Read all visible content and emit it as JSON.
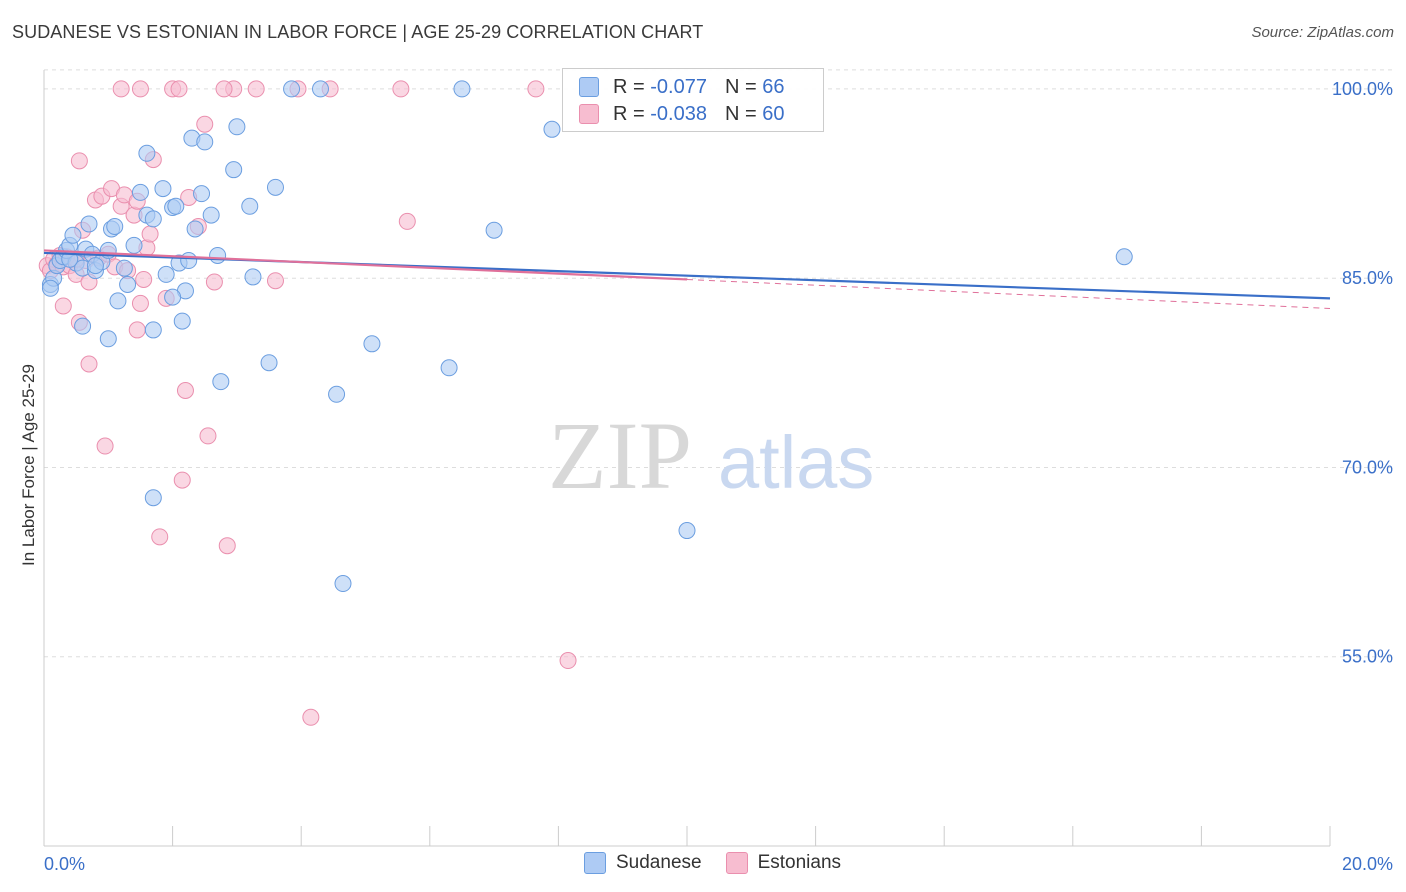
{
  "header": {
    "title": "SUDANESE VS ESTONIAN IN LABOR FORCE | AGE 25-29 CORRELATION CHART",
    "source": "Source: ZipAtlas.com"
  },
  "legend": {
    "r_label": "R =",
    "n_label": "N =",
    "series": [
      {
        "name": "Sudanese",
        "r": "-0.077",
        "n": "66"
      },
      {
        "name": "Estonians",
        "r": "-0.038",
        "n": "60"
      }
    ]
  },
  "watermark": {
    "zip": "ZIP",
    "atlas": "atlas"
  },
  "colors": {
    "sudanese_fill": "#aecbf4",
    "sudanese_stroke": "#6b9ee0",
    "sudanese_line": "#3a6fc8",
    "estonian_fill": "#f7bdd0",
    "estonian_stroke": "#ea8fae",
    "estonian_line": "#e0709a",
    "axis_label": "#3a6fc8",
    "grid": "#dddddd"
  },
  "chart_data": {
    "type": "scatter",
    "title": "SUDANESE VS ESTONIAN IN LABOR FORCE | AGE 25-29 CORRELATION CHART",
    "xlabel": "",
    "ylabel": "In Labor Force | Age 25-29",
    "xlim": [
      0,
      20
    ],
    "ylim": [
      40,
      101.5
    ],
    "x_tick_labels": [
      "0.0%",
      "20.0%"
    ],
    "y_ticks": [
      55,
      70,
      85,
      100
    ],
    "y_tick_labels": [
      "55.0%",
      "70.0%",
      "85.0%",
      "100.0%"
    ],
    "series": [
      {
        "name": "Sudanese",
        "trend": {
          "x": [
            0,
            20
          ],
          "y": [
            87.0,
            83.4
          ]
        },
        "points": [
          [
            0.1,
            84.5
          ],
          [
            0.15,
            85.0
          ],
          [
            0.2,
            86.0
          ],
          [
            0.25,
            86.4
          ],
          [
            0.3,
            86.7
          ],
          [
            0.35,
            87.2
          ],
          [
            0.4,
            87.6
          ],
          [
            0.45,
            88.4
          ],
          [
            0.5,
            86.2
          ],
          [
            0.6,
            85.8
          ],
          [
            0.65,
            87.3
          ],
          [
            0.7,
            89.3
          ],
          [
            0.75,
            86.9
          ],
          [
            0.8,
            85.6
          ],
          [
            0.9,
            86.3
          ],
          [
            1.0,
            87.2
          ],
          [
            1.05,
            88.9
          ],
          [
            1.1,
            89.1
          ],
          [
            1.15,
            83.2
          ],
          [
            1.3,
            84.5
          ],
          [
            1.4,
            87.6
          ],
          [
            1.5,
            91.8
          ],
          [
            1.6,
            90.0
          ],
          [
            1.7,
            89.7
          ],
          [
            1.85,
            92.1
          ],
          [
            1.9,
            85.3
          ],
          [
            2.0,
            90.6
          ],
          [
            2.05,
            90.7
          ],
          [
            2.1,
            86.2
          ],
          [
            2.2,
            84.0
          ],
          [
            2.25,
            86.4
          ],
          [
            2.3,
            96.1
          ],
          [
            2.35,
            88.9
          ],
          [
            2.45,
            91.7
          ],
          [
            2.5,
            95.8
          ],
          [
            2.6,
            90.0
          ],
          [
            2.7,
            86.8
          ],
          [
            2.75,
            76.8
          ],
          [
            2.95,
            93.6
          ],
          [
            3.0,
            97.0
          ],
          [
            3.2,
            90.7
          ],
          [
            3.25,
            85.1
          ],
          [
            3.5,
            78.3
          ],
          [
            3.6,
            92.2
          ],
          [
            3.85,
            100.0
          ],
          [
            4.3,
            100.0
          ],
          [
            4.55,
            75.8
          ],
          [
            4.65,
            60.8
          ],
          [
            5.1,
            79.8
          ],
          [
            6.3,
            77.9
          ],
          [
            6.5,
            100.0
          ],
          [
            7.0,
            88.8
          ],
          [
            7.9,
            96.8
          ],
          [
            10.0,
            65.0
          ],
          [
            16.8,
            86.7
          ],
          [
            0.6,
            81.2
          ],
          [
            1.0,
            80.2
          ],
          [
            1.7,
            67.6
          ],
          [
            1.7,
            80.9
          ],
          [
            2.0,
            83.5
          ],
          [
            0.1,
            84.2
          ],
          [
            0.4,
            86.5
          ],
          [
            1.25,
            85.8
          ],
          [
            2.15,
            81.6
          ],
          [
            1.6,
            94.9
          ],
          [
            0.8,
            86.0
          ]
        ]
      },
      {
        "name": "Estonians",
        "trend": {
          "x": [
            0,
            10
          ],
          "y": [
            87.2,
            84.9
          ]
        },
        "points": [
          [
            0.05,
            86.0
          ],
          [
            0.1,
            85.6
          ],
          [
            0.15,
            86.5
          ],
          [
            0.2,
            86.1
          ],
          [
            0.25,
            86.8
          ],
          [
            0.3,
            85.9
          ],
          [
            0.35,
            86.7
          ],
          [
            0.4,
            86.0
          ],
          [
            0.5,
            85.3
          ],
          [
            0.55,
            94.3
          ],
          [
            0.6,
            88.8
          ],
          [
            0.65,
            86.4
          ],
          [
            0.7,
            84.7
          ],
          [
            0.8,
            91.2
          ],
          [
            0.85,
            86.6
          ],
          [
            0.9,
            91.5
          ],
          [
            0.95,
            71.7
          ],
          [
            1.0,
            86.9
          ],
          [
            1.05,
            92.1
          ],
          [
            1.1,
            85.9
          ],
          [
            1.2,
            90.7
          ],
          [
            1.25,
            91.6
          ],
          [
            1.3,
            85.6
          ],
          [
            1.4,
            90.0
          ],
          [
            1.45,
            91.1
          ],
          [
            1.5,
            83.0
          ],
          [
            1.55,
            84.9
          ],
          [
            1.6,
            87.4
          ],
          [
            1.65,
            88.5
          ],
          [
            1.7,
            94.4
          ],
          [
            1.8,
            64.5
          ],
          [
            1.9,
            83.4
          ],
          [
            2.0,
            100.0
          ],
          [
            2.1,
            100.0
          ],
          [
            2.15,
            69.0
          ],
          [
            2.2,
            76.1
          ],
          [
            2.25,
            91.4
          ],
          [
            2.4,
            89.1
          ],
          [
            2.5,
            97.2
          ],
          [
            2.55,
            72.5
          ],
          [
            2.65,
            84.7
          ],
          [
            2.85,
            63.8
          ],
          [
            2.95,
            100.0
          ],
          [
            3.3,
            100.0
          ],
          [
            3.6,
            84.8
          ],
          [
            3.95,
            100.0
          ],
          [
            4.15,
            50.2
          ],
          [
            4.45,
            100.0
          ],
          [
            5.55,
            100.0
          ],
          [
            5.65,
            89.5
          ],
          [
            7.65,
            100.0
          ],
          [
            8.15,
            54.7
          ],
          [
            1.2,
            100.0
          ],
          [
            1.5,
            100.0
          ],
          [
            2.8,
            100.0
          ],
          [
            0.55,
            81.5
          ],
          [
            0.7,
            78.2
          ],
          [
            0.5,
            86.5
          ],
          [
            1.45,
            80.9
          ],
          [
            0.3,
            82.8
          ]
        ]
      }
    ]
  }
}
